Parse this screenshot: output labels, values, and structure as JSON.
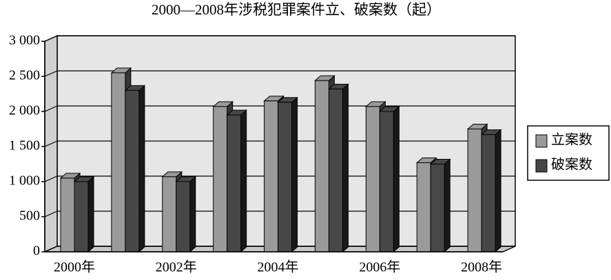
{
  "chart_data": {
    "type": "bar3d",
    "title": "2000—2008年涉税犯罪案件立、破案数（起）",
    "categories": [
      "2000年",
      null,
      "2002年",
      null,
      "2004年",
      null,
      "2006年",
      null,
      "2008年"
    ],
    "series": [
      {
        "name": "立案数",
        "color": "#9a9a9a",
        "values": [
          1050,
          2550,
          1070,
          2070,
          2150,
          2440,
          2070,
          1270,
          1750
        ]
      },
      {
        "name": "破案数",
        "color": "#474747",
        "values": [
          1000,
          2300,
          1000,
          1950,
          2130,
          2320,
          2000,
          1250,
          1670
        ]
      }
    ],
    "ylim": [
      0,
      3000
    ],
    "yticks": [
      0,
      500,
      {
        "value": 1000,
        "label": "1 000"
      },
      {
        "value": 1500,
        "label": "1 500"
      },
      {
        "value": 2000,
        "label": "2 000"
      },
      {
        "value": 2500,
        "label": "2 500"
      },
      {
        "value": 3000,
        "label": "3 000"
      }
    ],
    "grid": true,
    "legend": "right"
  }
}
